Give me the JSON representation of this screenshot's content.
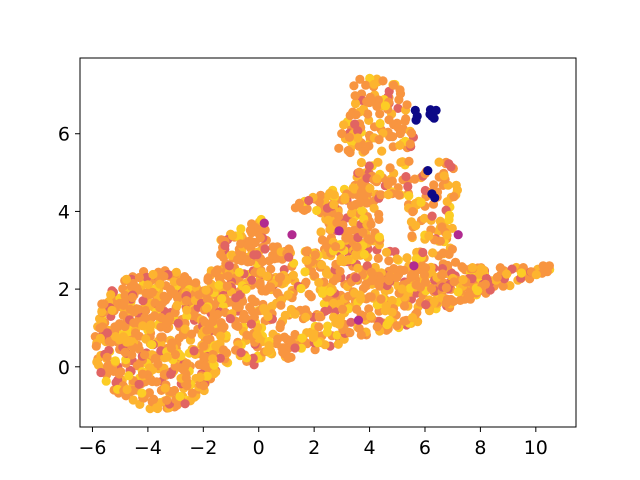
{
  "chart_data": {
    "type": "scatter",
    "title": "",
    "xlabel": "",
    "ylabel": "",
    "xlim": [
      -6.45,
      11.45
    ],
    "ylim": [
      -1.55,
      7.95
    ],
    "xticks": [
      -6,
      -4,
      -2,
      0,
      2,
      4,
      6,
      8,
      10
    ],
    "yticks": [
      0,
      2,
      4,
      6
    ],
    "grid": false,
    "legend": "none",
    "colormap": "plasma",
    "colors": {
      "dominant": "#f89540",
      "light": "#fdb42f",
      "yellow": "#fccd25",
      "pink": "#e16462",
      "magenta": "#b12a90",
      "dark": "#0d0887"
    },
    "point_groups": [
      {
        "region": "left-blob",
        "x_range": [
          -5.9,
          -1.5
        ],
        "y_range": [
          -1.1,
          2.6
        ],
        "count": 520
      },
      {
        "region": "lower-band",
        "x_range": [
          -2.0,
          6.0
        ],
        "y_range": [
          0.0,
          2.6
        ],
        "count": 520
      },
      {
        "region": "right-arm",
        "x_range": [
          6.0,
          10.6
        ],
        "y_range": [
          1.3,
          2.6
        ],
        "count": 160
      },
      {
        "region": "upper-lobe",
        "x_range": [
          -1.5,
          4.0
        ],
        "y_range": [
          2.6,
          5.0
        ],
        "count": 280
      },
      {
        "region": "right-mid",
        "x_range": [
          3.5,
          7.2
        ],
        "y_range": [
          2.0,
          5.3
        ],
        "count": 220
      },
      {
        "region": "top-peak",
        "x_range": [
          2.8,
          5.9
        ],
        "y_range": [
          5.5,
          7.5
        ],
        "count": 110
      }
    ],
    "dark_points": [
      {
        "x": 5.65,
        "y": 6.6
      },
      {
        "x": 5.72,
        "y": 6.45
      },
      {
        "x": 5.68,
        "y": 6.35
      },
      {
        "x": 6.2,
        "y": 6.62
      },
      {
        "x": 6.3,
        "y": 6.55
      },
      {
        "x": 6.25,
        "y": 6.45
      },
      {
        "x": 6.33,
        "y": 6.4
      },
      {
        "x": 6.18,
        "y": 6.5
      },
      {
        "x": 6.4,
        "y": 6.6
      },
      {
        "x": 6.1,
        "y": 5.05
      },
      {
        "x": 6.25,
        "y": 4.45
      },
      {
        "x": 6.35,
        "y": 4.35
      }
    ],
    "magenta_points": [
      {
        "x": 0.2,
        "y": 3.7
      },
      {
        "x": 1.2,
        "y": 3.4
      },
      {
        "x": 2.9,
        "y": 3.5
      },
      {
        "x": 5.6,
        "y": 2.6
      },
      {
        "x": 3.6,
        "y": 1.2
      },
      {
        "x": 7.2,
        "y": 3.4
      }
    ]
  }
}
